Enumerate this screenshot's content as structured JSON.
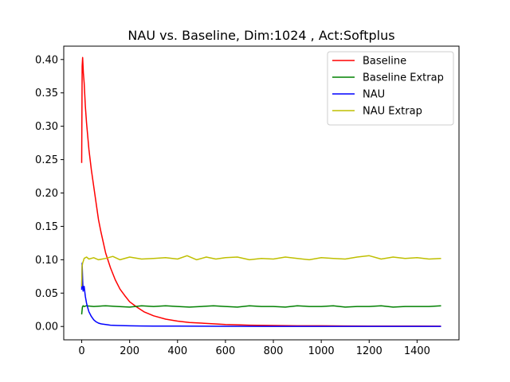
{
  "chart_data": {
    "type": "line",
    "title": "NAU vs. Baseline, Dim:1024 , Act:Softplus",
    "xlabel": "",
    "ylabel": "",
    "xlim": [
      -75,
      1575
    ],
    "ylim": [
      -0.02,
      0.42
    ],
    "xticks": [
      0,
      200,
      400,
      600,
      800,
      1000,
      1200,
      1400
    ],
    "xtick_labels": [
      "0",
      "200",
      "400",
      "600",
      "800",
      "1000",
      "1200",
      "1400"
    ],
    "yticks": [
      0.0,
      0.05,
      0.1,
      0.15,
      0.2,
      0.25,
      0.3,
      0.35,
      0.4
    ],
    "ytick_labels": [
      "0.00",
      "0.05",
      "0.10",
      "0.15",
      "0.20",
      "0.25",
      "0.30",
      "0.35",
      "0.40"
    ],
    "grid": false,
    "legend_position": "top-right",
    "series": [
      {
        "name": "Baseline",
        "color": "#ff0000",
        "x": [
          0,
          2,
          4,
          7,
          10,
          15,
          20,
          25,
          30,
          40,
          50,
          60,
          70,
          80,
          90,
          100,
          120,
          140,
          160,
          180,
          200,
          230,
          260,
          300,
          350,
          400,
          450,
          500,
          550,
          600,
          650,
          700,
          800,
          900,
          1000,
          1100,
          1200,
          1300,
          1400,
          1500
        ],
        "y": [
          0.245,
          0.39,
          0.403,
          0.38,
          0.365,
          0.33,
          0.305,
          0.285,
          0.265,
          0.235,
          0.21,
          0.185,
          0.16,
          0.142,
          0.126,
          0.11,
          0.088,
          0.07,
          0.056,
          0.046,
          0.037,
          0.029,
          0.022,
          0.016,
          0.011,
          0.008,
          0.006,
          0.005,
          0.004,
          0.003,
          0.0025,
          0.002,
          0.0015,
          0.001,
          0.001,
          0.0008,
          0.0006,
          0.0005,
          0.0005,
          0.0004
        ]
      },
      {
        "name": "Baseline Extrap",
        "color": "#008000",
        "x": [
          0,
          3,
          6,
          10,
          20,
          50,
          100,
          150,
          200,
          250,
          300,
          350,
          400,
          450,
          500,
          550,
          600,
          650,
          700,
          750,
          800,
          850,
          900,
          950,
          1000,
          1050,
          1100,
          1150,
          1200,
          1250,
          1300,
          1350,
          1400,
          1450,
          1500
        ],
        "y": [
          0.018,
          0.029,
          0.031,
          0.03,
          0.031,
          0.03,
          0.031,
          0.03,
          0.029,
          0.031,
          0.03,
          0.031,
          0.03,
          0.029,
          0.03,
          0.031,
          0.03,
          0.029,
          0.031,
          0.03,
          0.03,
          0.029,
          0.031,
          0.03,
          0.03,
          0.031,
          0.029,
          0.03,
          0.03,
          0.031,
          0.029,
          0.03,
          0.03,
          0.03,
          0.031
        ]
      },
      {
        "name": "NAU",
        "color": "#0000ff",
        "x": [
          0,
          2,
          4,
          6,
          10,
          15,
          20,
          25,
          30,
          40,
          50,
          60,
          70,
          80,
          100,
          120,
          150,
          200,
          250,
          300,
          400,
          500,
          600,
          800,
          1000,
          1200,
          1500
        ],
        "y": [
          0.055,
          0.095,
          0.07,
          0.053,
          0.06,
          0.045,
          0.035,
          0.028,
          0.022,
          0.015,
          0.01,
          0.007,
          0.005,
          0.004,
          0.003,
          0.002,
          0.0015,
          0.001,
          0.0008,
          0.0006,
          0.0005,
          0.0004,
          0.0003,
          0.0002,
          0.0002,
          0.0001,
          0.0001
        ]
      },
      {
        "name": "NAU Extrap",
        "color": "#bfbf00",
        "x": [
          0,
          2,
          4,
          7,
          10,
          20,
          30,
          50,
          70,
          100,
          130,
          160,
          200,
          250,
          300,
          350,
          400,
          440,
          480,
          520,
          560,
          600,
          650,
          700,
          750,
          800,
          850,
          900,
          950,
          1000,
          1050,
          1100,
          1150,
          1200,
          1250,
          1300,
          1350,
          1400,
          1450,
          1500
        ],
        "y": [
          0.06,
          0.09,
          0.095,
          0.098,
          0.102,
          0.104,
          0.101,
          0.103,
          0.1,
          0.102,
          0.105,
          0.1,
          0.104,
          0.101,
          0.102,
          0.103,
          0.101,
          0.106,
          0.1,
          0.104,
          0.101,
          0.103,
          0.104,
          0.1,
          0.102,
          0.101,
          0.104,
          0.102,
          0.1,
          0.103,
          0.102,
          0.101,
          0.104,
          0.106,
          0.101,
          0.104,
          0.102,
          0.103,
          0.101,
          0.102
        ]
      }
    ]
  }
}
